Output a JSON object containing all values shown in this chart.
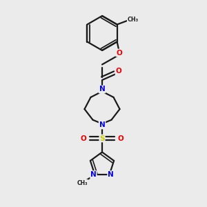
{
  "bg_color": "#ebebeb",
  "bond_color": "#1a1a1a",
  "bond_width": 1.6,
  "atom_colors": {
    "N": "#0000ee",
    "O": "#ee0000",
    "S": "#cccc00",
    "C": "#1a1a1a"
  },
  "figsize": [
    3.0,
    3.0
  ],
  "dpi": 100,
  "xlim": [
    0,
    300
  ],
  "ylim": [
    0,
    300
  ]
}
